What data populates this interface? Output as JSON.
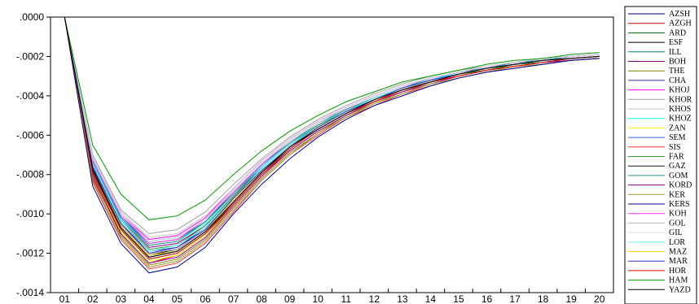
{
  "chart_data": {
    "type": "line",
    "title": "",
    "xlabel": "",
    "ylabel": "",
    "x": [
      "01",
      "02",
      "03",
      "04",
      "05",
      "06",
      "07",
      "08",
      "09",
      "10",
      "11",
      "12",
      "13",
      "14",
      "15",
      "16",
      "17",
      "18",
      "19",
      "20"
    ],
    "y_ticks": [
      ".0000",
      "-.0002",
      "-.0004",
      "-.0006",
      "-.0008",
      "-.0010",
      "-.0012",
      "-.0014"
    ],
    "ylim": [
      -0.0014,
      0.0
    ],
    "grid": false,
    "legend_position": "right",
    "series": [
      {
        "name": "AZSH",
        "color": "#000080",
        "values": [
          0,
          -0.00075,
          -0.00105,
          -0.0012,
          -0.00118,
          -0.00108,
          -0.00092,
          -0.00077,
          -0.00065,
          -0.00056,
          -0.00048,
          -0.00041,
          -0.00036,
          -0.00032,
          -0.00029,
          -0.00026,
          -0.00024,
          -0.00022,
          -0.00021,
          -0.0002
        ]
      },
      {
        "name": "AZGH",
        "color": "#cc0000",
        "values": [
          0,
          -0.00082,
          -0.0011,
          -0.00125,
          -0.00121,
          -0.00111,
          -0.00095,
          -0.0008,
          -0.00068,
          -0.00058,
          -0.0005,
          -0.00043,
          -0.00038,
          -0.00033,
          -0.0003,
          -0.00027,
          -0.00025,
          -0.00023,
          -0.00022,
          -0.00021
        ]
      },
      {
        "name": "ARD",
        "color": "#006400",
        "values": [
          0,
          -0.00078,
          -0.00108,
          -0.00123,
          -0.0012,
          -0.0011,
          -0.00094,
          -0.00079,
          -0.00067,
          -0.00057,
          -0.00049,
          -0.00042,
          -0.00037,
          -0.00033,
          -0.00029,
          -0.00027,
          -0.00024,
          -0.00023,
          -0.00021,
          -0.0002
        ]
      },
      {
        "name": "ESF",
        "color": "#000000",
        "values": [
          0,
          -0.00077,
          -0.00106,
          -0.00121,
          -0.00118,
          -0.00108,
          -0.00093,
          -0.00078,
          -0.00066,
          -0.00056,
          -0.00048,
          -0.00042,
          -0.00037,
          -0.00032,
          -0.00029,
          -0.00026,
          -0.00024,
          -0.00022,
          -0.00021,
          -0.0002
        ]
      },
      {
        "name": "ILL",
        "color": "#008080",
        "values": [
          0,
          -0.00073,
          -0.00102,
          -0.00115,
          -0.00113,
          -0.00104,
          -0.00089,
          -0.00075,
          -0.00064,
          -0.00054,
          -0.00047,
          -0.00041,
          -0.00036,
          -0.00032,
          -0.00028,
          -0.00026,
          -0.00024,
          -0.00022,
          -0.0002,
          -0.00019
        ]
      },
      {
        "name": "BOH",
        "color": "#800080",
        "values": [
          0,
          -0.00074,
          -0.00103,
          -0.00117,
          -0.00115,
          -0.00106,
          -0.00091,
          -0.00076,
          -0.00064,
          -0.00055,
          -0.00047,
          -0.00041,
          -0.00036,
          -0.00032,
          -0.00028,
          -0.00026,
          -0.00023,
          -0.00022,
          -0.0002,
          -0.00019
        ]
      },
      {
        "name": "THE",
        "color": "#808000",
        "values": [
          0,
          -0.00081,
          -0.00111,
          -0.00126,
          -0.00123,
          -0.00113,
          -0.00097,
          -0.00082,
          -0.00069,
          -0.00059,
          -0.0005,
          -0.00044,
          -0.00038,
          -0.00034,
          -0.0003,
          -0.00027,
          -0.00025,
          -0.00023,
          -0.00022,
          -0.00021
        ]
      },
      {
        "name": "CHA",
        "color": "#333399",
        "values": [
          0,
          -0.00076,
          -0.00105,
          -0.00119,
          -0.00117,
          -0.00107,
          -0.00092,
          -0.00077,
          -0.00065,
          -0.00056,
          -0.00048,
          -0.00041,
          -0.00036,
          -0.00032,
          -0.00029,
          -0.00026,
          -0.00024,
          -0.00022,
          -0.00021,
          -0.0002
        ]
      },
      {
        "name": "KHOJ",
        "color": "#ff00ff",
        "values": [
          0,
          -0.00072,
          -0.001,
          -0.00113,
          -0.00111,
          -0.00102,
          -0.00087,
          -0.00073,
          -0.00062,
          -0.00053,
          -0.00046,
          -0.0004,
          -0.00035,
          -0.00031,
          -0.00028,
          -0.00025,
          -0.00023,
          -0.00021,
          -0.0002,
          -0.00019
        ]
      },
      {
        "name": "KHOR",
        "color": "#a0a0a0",
        "values": [
          0,
          -0.0007,
          -0.00098,
          -0.0011,
          -0.00108,
          -0.00099,
          -0.00085,
          -0.00072,
          -0.00061,
          -0.00052,
          -0.00045,
          -0.00039,
          -0.00034,
          -0.0003,
          -0.00027,
          -0.00025,
          -0.00023,
          -0.00021,
          -0.0002,
          -0.00019
        ]
      },
      {
        "name": "KHOS",
        "color": "#c8c8c8",
        "values": [
          0,
          -0.00071,
          -0.00099,
          -0.00112,
          -0.0011,
          -0.00101,
          -0.00087,
          -0.00073,
          -0.00062,
          -0.00053,
          -0.00046,
          -0.0004,
          -0.00035,
          -0.00031,
          -0.00028,
          -0.00025,
          -0.00023,
          -0.00021,
          -0.0002,
          -0.00019
        ]
      },
      {
        "name": "KHOZ",
        "color": "#00ffff",
        "values": [
          0,
          -0.00074,
          -0.00103,
          -0.00116,
          -0.00114,
          -0.00105,
          -0.0009,
          -0.00076,
          -0.00064,
          -0.00055,
          -0.00047,
          -0.00041,
          -0.00036,
          -0.00032,
          -0.00028,
          -0.00026,
          -0.00023,
          -0.00022,
          -0.0002,
          -0.00019
        ]
      },
      {
        "name": "ZAN",
        "color": "#ffff00",
        "values": [
          0,
          -0.00079,
          -0.00109,
          -0.00124,
          -0.00121,
          -0.00111,
          -0.00096,
          -0.00081,
          -0.00068,
          -0.00058,
          -0.0005,
          -0.00043,
          -0.00038,
          -0.00034,
          -0.0003,
          -0.00027,
          -0.00025,
          -0.00023,
          -0.00022,
          -0.00021
        ]
      },
      {
        "name": "SEM",
        "color": "#3366ff",
        "values": [
          0,
          -0.00072,
          -0.00101,
          -0.00114,
          -0.00112,
          -0.00103,
          -0.00088,
          -0.00074,
          -0.00063,
          -0.00054,
          -0.00046,
          -0.0004,
          -0.00035,
          -0.00031,
          -0.00028,
          -0.00025,
          -0.00023,
          -0.00021,
          -0.0002,
          -0.00019
        ]
      },
      {
        "name": "SIS",
        "color": "#ff3333",
        "values": [
          0,
          -0.00084,
          -0.00113,
          -0.00128,
          -0.00125,
          -0.00115,
          -0.00099,
          -0.00083,
          -0.0007,
          -0.0006,
          -0.00051,
          -0.00045,
          -0.00039,
          -0.00035,
          -0.00031,
          -0.00028,
          -0.00026,
          -0.00024,
          -0.00022,
          -0.00021
        ]
      },
      {
        "name": "FAR",
        "color": "#339933",
        "values": [
          0,
          -0.00075,
          -0.00104,
          -0.00118,
          -0.00116,
          -0.00106,
          -0.00091,
          -0.00077,
          -0.00065,
          -0.00055,
          -0.00048,
          -0.00041,
          -0.00036,
          -0.00032,
          -0.00029,
          -0.00026,
          -0.00024,
          -0.00022,
          -0.00021,
          -0.0002
        ]
      },
      {
        "name": "GAZ",
        "color": "#1a1a1a",
        "values": [
          0,
          -0.00078,
          -0.00107,
          -0.00122,
          -0.00119,
          -0.00109,
          -0.00094,
          -0.00079,
          -0.00066,
          -0.00057,
          -0.00049,
          -0.00042,
          -0.00037,
          -0.00033,
          -0.00029,
          -0.00026,
          -0.00024,
          -0.00022,
          -0.00021,
          -0.0002
        ]
      },
      {
        "name": "GOM",
        "color": "#2f8f8f",
        "values": [
          0,
          -0.00073,
          -0.00102,
          -0.00116,
          -0.00114,
          -0.00104,
          -0.0009,
          -0.00075,
          -0.00064,
          -0.00054,
          -0.00047,
          -0.00041,
          -0.00036,
          -0.00031,
          -0.00028,
          -0.00026,
          -0.00023,
          -0.00022,
          -0.0002,
          -0.00019
        ]
      },
      {
        "name": "KORD",
        "color": "#990099",
        "values": [
          0,
          -0.0008,
          -0.0011,
          -0.00125,
          -0.00122,
          -0.00112,
          -0.00096,
          -0.00081,
          -0.00068,
          -0.00058,
          -0.0005,
          -0.00043,
          -0.00038,
          -0.00034,
          -0.0003,
          -0.00027,
          -0.00025,
          -0.00023,
          -0.00022,
          -0.00021
        ]
      },
      {
        "name": "KER",
        "color": "#999933",
        "values": [
          0,
          -0.00083,
          -0.00112,
          -0.00127,
          -0.00124,
          -0.00114,
          -0.00098,
          -0.00083,
          -0.0007,
          -0.00059,
          -0.00051,
          -0.00044,
          -0.00039,
          -0.00034,
          -0.00031,
          -0.00028,
          -0.00025,
          -0.00024,
          -0.00022,
          -0.00021
        ]
      },
      {
        "name": "KERS",
        "color": "#000099",
        "values": [
          0,
          -0.00086,
          -0.00115,
          -0.0013,
          -0.00127,
          -0.00117,
          -0.001,
          -0.00085,
          -0.00072,
          -0.00061,
          -0.00052,
          -0.00045,
          -0.0004,
          -0.00035,
          -0.00031,
          -0.00028,
          -0.00026,
          -0.00024,
          -0.00022,
          -0.00021
        ]
      },
      {
        "name": "KOH",
        "color": "#ff33ff",
        "values": [
          0,
          -0.00073,
          -0.00101,
          -0.00115,
          -0.00113,
          -0.00103,
          -0.00089,
          -0.00075,
          -0.00063,
          -0.00054,
          -0.00046,
          -0.0004,
          -0.00035,
          -0.00031,
          -0.00028,
          -0.00025,
          -0.00023,
          -0.00021,
          -0.0002,
          -0.00019
        ]
      },
      {
        "name": "GOL",
        "color": "#b4b4b4",
        "values": [
          0,
          -0.00076,
          -0.00106,
          -0.0012,
          -0.00118,
          -0.00108,
          -0.00093,
          -0.00078,
          -0.00066,
          -0.00056,
          -0.00048,
          -0.00042,
          -0.00037,
          -0.00032,
          -0.00029,
          -0.00026,
          -0.00024,
          -0.00022,
          -0.00021,
          -0.0002
        ]
      },
      {
        "name": "GIL",
        "color": "#dcdcdc",
        "values": [
          0,
          -0.00072,
          -0.001,
          -0.00114,
          -0.00112,
          -0.00103,
          -0.00088,
          -0.00074,
          -0.00063,
          -0.00054,
          -0.00046,
          -0.0004,
          -0.00035,
          -0.00031,
          -0.00028,
          -0.00025,
          -0.00023,
          -0.00021,
          -0.0002,
          -0.00019
        ]
      },
      {
        "name": "LOR",
        "color": "#66ffff",
        "values": [
          0,
          -0.00075,
          -0.00104,
          -0.00119,
          -0.00116,
          -0.00107,
          -0.00092,
          -0.00077,
          -0.00065,
          -0.00056,
          -0.00048,
          -0.00041,
          -0.00036,
          -0.00032,
          -0.00029,
          -0.00026,
          -0.00024,
          -0.00022,
          -0.00021,
          -0.0002
        ]
      },
      {
        "name": "MAZ",
        "color": "#ffd700",
        "values": [
          0,
          -0.00077,
          -0.00106,
          -0.00121,
          -0.00119,
          -0.00109,
          -0.00093,
          -0.00078,
          -0.00066,
          -0.00056,
          -0.00048,
          -0.00042,
          -0.00037,
          -0.00033,
          -0.00029,
          -0.00026,
          -0.00024,
          -0.00022,
          -0.00021,
          -0.0002
        ]
      },
      {
        "name": "MAR",
        "color": "#3333cc",
        "values": [
          0,
          -0.00076,
          -0.00105,
          -0.0012,
          -0.00117,
          -0.00108,
          -0.00092,
          -0.00078,
          -0.00066,
          -0.00056,
          -0.00048,
          -0.00042,
          -0.00036,
          -0.00032,
          -0.00029,
          -0.00026,
          -0.00024,
          -0.00022,
          -0.00021,
          -0.0002
        ]
      },
      {
        "name": "HOR",
        "color": "#e60000",
        "values": [
          0,
          -0.00079,
          -0.00108,
          -0.00123,
          -0.0012,
          -0.0011,
          -0.00095,
          -0.0008,
          -0.00067,
          -0.00057,
          -0.00049,
          -0.00043,
          -0.00037,
          -0.00033,
          -0.0003,
          -0.00027,
          -0.00025,
          -0.00023,
          -0.00021,
          -0.0002
        ]
      },
      {
        "name": "HAM",
        "color": "#009900",
        "values": [
          0,
          -0.00065,
          -0.0009,
          -0.00103,
          -0.00101,
          -0.00093,
          -0.0008,
          -0.00068,
          -0.00058,
          -0.0005,
          -0.00043,
          -0.00038,
          -0.00033,
          -0.0003,
          -0.00027,
          -0.00024,
          -0.00022,
          -0.00021,
          -0.00019,
          -0.00018
        ]
      },
      {
        "name": "YAZD",
        "color": "#000000",
        "values": [
          0,
          -0.00077,
          -0.00107,
          -0.00122,
          -0.00119,
          -0.00109,
          -0.00094,
          -0.00079,
          -0.00066,
          -0.00057,
          -0.00049,
          -0.00042,
          -0.00037,
          -0.00033,
          -0.00029,
          -0.00026,
          -0.00024,
          -0.00022,
          -0.00021,
          -0.0002
        ]
      }
    ]
  }
}
